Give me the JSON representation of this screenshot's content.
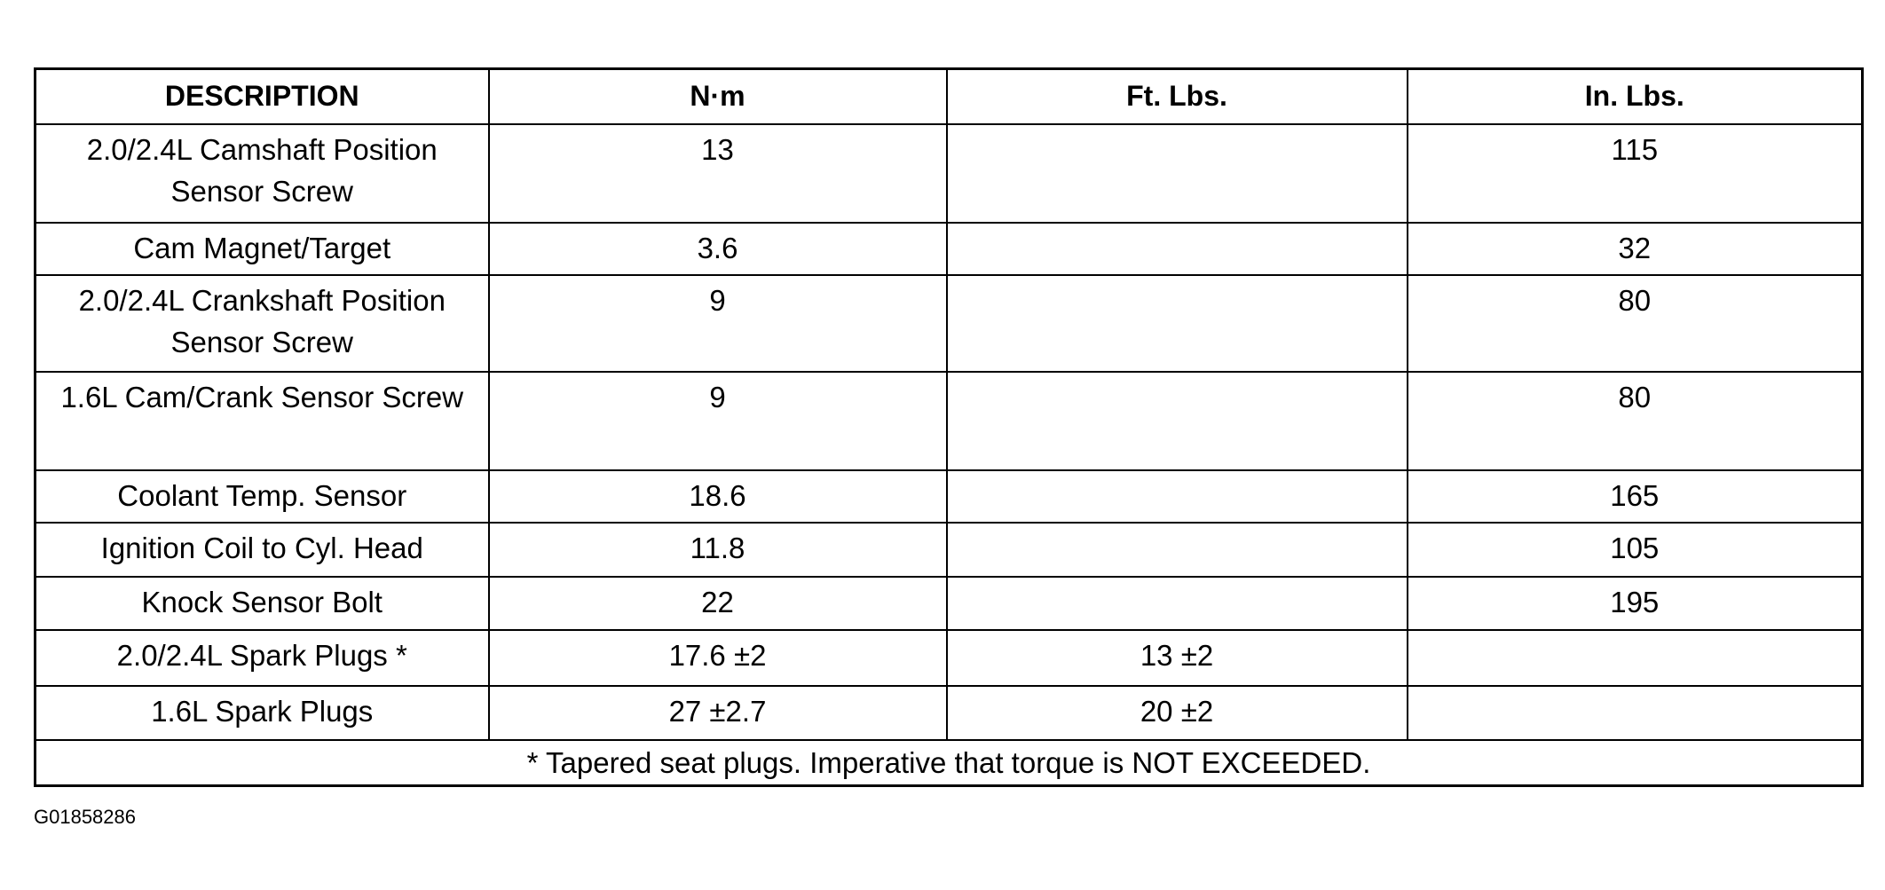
{
  "table": {
    "headers": [
      "DESCRIPTION",
      "N·m",
      "Ft. Lbs.",
      "In. Lbs."
    ],
    "rows": [
      {
        "description": "2.0/2.4L Camshaft Position Sensor Screw",
        "nm": "13",
        "ft_lbs": "",
        "in_lbs": "115"
      },
      {
        "description": "Cam Magnet/Target",
        "nm": "3.6",
        "ft_lbs": "",
        "in_lbs": "32"
      },
      {
        "description": "2.0/2.4L Crankshaft Position Sensor Screw",
        "nm": "9",
        "ft_lbs": "",
        "in_lbs": "80"
      },
      {
        "description": "1.6L Cam/Crank Sensor Screw",
        "nm": "9",
        "ft_lbs": "",
        "in_lbs": "80"
      },
      {
        "description": "Coolant Temp. Sensor",
        "nm": "18.6",
        "ft_lbs": "",
        "in_lbs": "165"
      },
      {
        "description": "Ignition Coil to Cyl. Head",
        "nm": "11.8",
        "ft_lbs": "",
        "in_lbs": "105"
      },
      {
        "description": "Knock Sensor Bolt",
        "nm": "22",
        "ft_lbs": "",
        "in_lbs": "195"
      },
      {
        "description": "2.0/2.4L Spark Plugs *",
        "nm": "17.6 ±2",
        "ft_lbs": "13 ±2",
        "in_lbs": ""
      },
      {
        "description": "1.6L Spark Plugs",
        "nm": "27 ±2.7",
        "ft_lbs": "20 ±2",
        "in_lbs": ""
      }
    ],
    "footnote": "* Tapered seat plugs. Imperative that torque is NOT EXCEEDED."
  },
  "figure_id": "G01858286"
}
